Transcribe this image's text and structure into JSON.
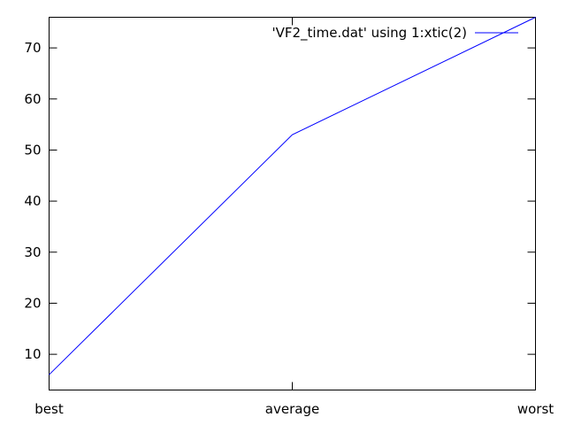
{
  "chart_data": {
    "type": "line",
    "title": "",
    "xlabel": "",
    "ylabel": "",
    "categories": [
      "best",
      "average",
      "worst"
    ],
    "series": [
      {
        "name": "'VF2_time.dat' using 1:xtic(2)",
        "values": [
          6,
          53,
          76
        ],
        "color": "#0000ff"
      }
    ],
    "ylim": [
      3,
      76
    ],
    "yticks": [
      10,
      20,
      30,
      40,
      50,
      60,
      70
    ],
    "grid": false,
    "legend_position": "top-right"
  }
}
